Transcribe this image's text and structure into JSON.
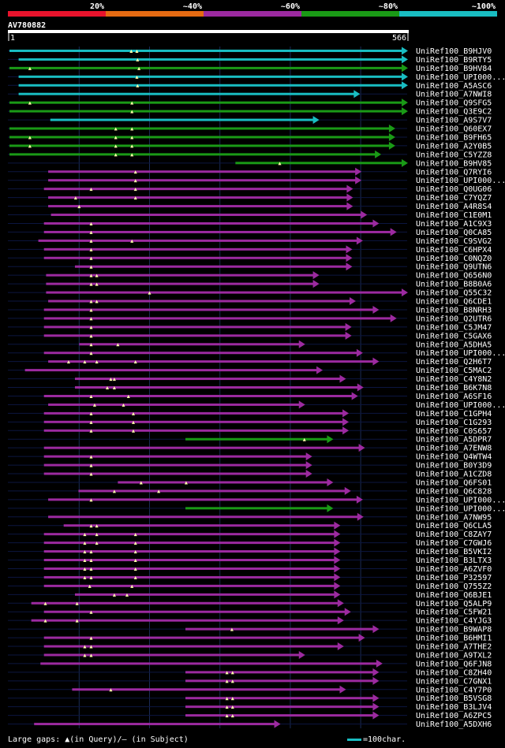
{
  "colors": {
    "c20": "#e8132c",
    "c40": "#e56a12",
    "c60": "#9c2aa0",
    "c80": "#1a9a16",
    "c100": "#19bdc2",
    "query": "#ffffff",
    "background": "#000000",
    "grid": "#1a2a55"
  },
  "legend": {
    "gaps_text": "Large gaps: ▲(in Query)/– (in Subject)",
    "scale_text": "=100char."
  },
  "chart_data": {
    "type": "alignment-overview",
    "title": "AV780882",
    "identity_bins": [
      {
        "label": "20%",
        "color": "c20"
      },
      {
        "label": "~40%",
        "color": "c40"
      },
      {
        "label": "~60%",
        "color": "c60"
      },
      {
        "label": "~80%",
        "color": "c80"
      },
      {
        "label": "~100%",
        "color": "c100"
      }
    ],
    "query": {
      "start": 1,
      "end": 566,
      "start_label": "1",
      "end_label": "566"
    },
    "gridlines": [
      100,
      200,
      300,
      400,
      500
    ],
    "hits": [
      {
        "id": "UniRef100_B9HJV0",
        "s": 1,
        "e": 566,
        "c": "c100",
        "g": [
          174,
          182
        ]
      },
      {
        "id": "UniRef100_B9RTY5",
        "s": 14,
        "e": 566,
        "c": "c100",
        "g": [
          183
        ]
      },
      {
        "id": "UniRef100_B9HV84",
        "s": 1,
        "e": 566,
        "c": "c80",
        "g": [
          30,
          185
        ]
      },
      {
        "id": "UniRef100_UPI000...",
        "s": 14,
        "e": 566,
        "c": "c100",
        "g": [
          182
        ]
      },
      {
        "id": "UniRef100_A5ASC6",
        "s": 14,
        "e": 566,
        "c": "c100",
        "g": [
          183
        ]
      },
      {
        "id": "UniRef100_A7NWI8",
        "s": 14,
        "e": 498,
        "c": "c100",
        "g": []
      },
      {
        "id": "UniRef100_Q9SFG5",
        "s": 1,
        "e": 566,
        "c": "c80",
        "g": [
          30,
          175
        ]
      },
      {
        "id": "UniRef100_Q3E9C2",
        "s": 1,
        "e": 566,
        "c": "c80",
        "g": [
          175
        ]
      },
      {
        "id": "UniRef100_A9S7V7",
        "s": 59,
        "e": 440,
        "c": "c100",
        "g": []
      },
      {
        "id": "UniRef100_Q60EX7",
        "s": 1,
        "e": 548,
        "c": "c80",
        "g": [
          152,
          175
        ]
      },
      {
        "id": "UniRef100_B9FH65",
        "s": 1,
        "e": 548,
        "c": "c80",
        "g": [
          30,
          152,
          175
        ]
      },
      {
        "id": "UniRef100_A2Y0B5",
        "s": 1,
        "e": 548,
        "c": "c80",
        "g": [
          30,
          152,
          175
        ]
      },
      {
        "id": "UniRef100_C5YZZ8",
        "s": 1,
        "e": 528,
        "c": "c80",
        "g": [
          152,
          175
        ]
      },
      {
        "id": "UniRef100_B9HV85",
        "s": 322,
        "e": 566,
        "c": "c80",
        "g": [
          385
        ]
      },
      {
        "id": "UniRef100_Q7RYI6",
        "s": 56,
        "e": 500,
        "c": "c60",
        "g": [
          180
        ]
      },
      {
        "id": "UniRef100_UPI000...",
        "s": 56,
        "e": 500,
        "c": "c60",
        "g": [
          180
        ]
      },
      {
        "id": "UniRef100_Q0UG06",
        "s": 50,
        "e": 488,
        "c": "c60",
        "g": [
          117,
          180
        ]
      },
      {
        "id": "UniRef100_C7YQZ7",
        "s": 56,
        "e": 488,
        "c": "c60",
        "g": [
          95,
          180
        ]
      },
      {
        "id": "UniRef100_A4R8S4",
        "s": 56,
        "e": 488,
        "c": "c60",
        "g": [
          100
        ]
      },
      {
        "id": "UniRef100_C1E0M1",
        "s": 60,
        "e": 508,
        "c": "c60",
        "g": []
      },
      {
        "id": "UniRef100_A1C9X3",
        "s": 50,
        "e": 525,
        "c": "c60",
        "g": [
          117
        ]
      },
      {
        "id": "UniRef100_Q0CA85",
        "s": 50,
        "e": 550,
        "c": "c60",
        "g": [
          117
        ]
      },
      {
        "id": "UniRef100_C9SVG2",
        "s": 42,
        "e": 502,
        "c": "c60",
        "g": [
          117,
          175
        ]
      },
      {
        "id": "UniRef100_C6HPX4",
        "s": 50,
        "e": 487,
        "c": "c60",
        "g": [
          117
        ]
      },
      {
        "id": "UniRef100_C0NQZ0",
        "s": 50,
        "e": 487,
        "c": "c60",
        "g": [
          117
        ]
      },
      {
        "id": "UniRef100_Q9UTN6",
        "s": 94,
        "e": 487,
        "c": "c60",
        "g": [
          117
        ]
      },
      {
        "id": "UniRef100_Q656N0",
        "s": 53,
        "e": 440,
        "c": "c60",
        "g": [
          117,
          125
        ]
      },
      {
        "id": "UniRef100_B8B0A6",
        "s": 53,
        "e": 440,
        "c": "c60",
        "g": [
          117,
          125
        ]
      },
      {
        "id": "UniRef100_Q55C32",
        "s": 53,
        "e": 566,
        "c": "c60",
        "g": [
          200
        ]
      },
      {
        "id": "UniRef100_Q6CDE1",
        "s": 56,
        "e": 492,
        "c": "c60",
        "g": [
          117,
          125
        ]
      },
      {
        "id": "UniRef100_B8NRH3",
        "s": 50,
        "e": 525,
        "c": "c60",
        "g": [
          117
        ]
      },
      {
        "id": "UniRef100_Q2UTR6",
        "s": 50,
        "e": 550,
        "c": "c60",
        "g": [
          117
        ]
      },
      {
        "id": "UniRef100_C5JM47",
        "s": 50,
        "e": 486,
        "c": "c60",
        "g": [
          117
        ]
      },
      {
        "id": "UniRef100_C5GAX6",
        "s": 50,
        "e": 486,
        "c": "c60",
        "g": [
          117
        ]
      },
      {
        "id": "UniRef100_A5DHA5",
        "s": 100,
        "e": 420,
        "c": "c60",
        "g": [
          117,
          155
        ]
      },
      {
        "id": "UniRef100_UPI000...",
        "s": 50,
        "e": 502,
        "c": "c60",
        "g": [
          117
        ]
      },
      {
        "id": "UniRef100_Q2H6T7",
        "s": 56,
        "e": 525,
        "c": "c60",
        "g": [
          85,
          108,
          125,
          180
        ]
      },
      {
        "id": "UniRef100_C5MAC2",
        "s": 23,
        "e": 445,
        "c": "c60",
        "g": []
      },
      {
        "id": "UniRef100_C4Y8N2",
        "s": 94,
        "e": 478,
        "c": "c60",
        "g": [
          145,
          150
        ]
      },
      {
        "id": "UniRef100_B6K7N8",
        "s": 94,
        "e": 503,
        "c": "c60",
        "g": [
          140,
          150
        ]
      },
      {
        "id": "UniRef100_A6SF16",
        "s": 50,
        "e": 495,
        "c": "c60",
        "g": [
          117,
          170
        ]
      },
      {
        "id": "UniRef100_UPI000...",
        "s": 56,
        "e": 420,
        "c": "c60",
        "g": [
          122,
          163
        ]
      },
      {
        "id": "UniRef100_C1GPH4",
        "s": 50,
        "e": 482,
        "c": "c60",
        "g": [
          117,
          177
        ]
      },
      {
        "id": "UniRef100_C1G293",
        "s": 50,
        "e": 482,
        "c": "c60",
        "g": [
          117,
          177
        ]
      },
      {
        "id": "UniRef100_C0S657",
        "s": 50,
        "e": 482,
        "c": "c60",
        "g": [
          117,
          177
        ]
      },
      {
        "id": "UniRef100_A5DPR7",
        "s": 251,
        "e": 460,
        "c": "c80",
        "g": [
          420
        ]
      },
      {
        "id": "UniRef100_A7ENW8",
        "s": 50,
        "e": 505,
        "c": "c60",
        "g": []
      },
      {
        "id": "UniRef100_Q4WTW4",
        "s": 50,
        "e": 430,
        "c": "c60",
        "g": [
          117
        ]
      },
      {
        "id": "UniRef100_B0Y3D9",
        "s": 50,
        "e": 430,
        "c": "c60",
        "g": [
          117
        ]
      },
      {
        "id": "UniRef100_A1CZD8",
        "s": 50,
        "e": 430,
        "c": "c60",
        "g": [
          117
        ]
      },
      {
        "id": "UniRef100_Q6FS01",
        "s": 155,
        "e": 460,
        "c": "c60",
        "g": [
          188,
          252
        ]
      },
      {
        "id": "UniRef100_Q6C828",
        "s": 99,
        "e": 485,
        "c": "c60",
        "g": [
          150,
          213
        ]
      },
      {
        "id": "UniRef100_UPI000...",
        "s": 56,
        "e": 502,
        "c": "c60",
        "g": [
          117
        ]
      },
      {
        "id": "UniRef100_UPI000...",
        "s": 251,
        "e": 460,
        "c": "c80",
        "g": []
      },
      {
        "id": "UniRef100_A7NW95",
        "s": 56,
        "e": 503,
        "c": "c60",
        "g": []
      },
      {
        "id": "UniRef100_Q6CLA5",
        "s": 78,
        "e": 470,
        "c": "c60",
        "g": [
          117,
          125
        ]
      },
      {
        "id": "UniRef100_C8ZAY7",
        "s": 50,
        "e": 470,
        "c": "c60",
        "g": [
          108,
          125,
          180
        ]
      },
      {
        "id": "UniRef100_C7GWJ6",
        "s": 50,
        "e": 470,
        "c": "c60",
        "g": [
          108,
          125,
          180
        ]
      },
      {
        "id": "UniRef100_B5VKI2",
        "s": 50,
        "e": 470,
        "c": "c60",
        "g": [
          108,
          117,
          180
        ]
      },
      {
        "id": "UniRef100_B3LTX3",
        "s": 50,
        "e": 470,
        "c": "c60",
        "g": [
          108,
          117,
          180
        ]
      },
      {
        "id": "UniRef100_A6ZVF0",
        "s": 50,
        "e": 470,
        "c": "c60",
        "g": [
          108,
          117,
          180
        ]
      },
      {
        "id": "UniRef100_P32597",
        "s": 50,
        "e": 470,
        "c": "c60",
        "g": [
          108,
          117,
          180
        ]
      },
      {
        "id": "UniRef100_Q755Z2",
        "s": 50,
        "e": 470,
        "c": "c60",
        "g": [
          115,
          175
        ]
      },
      {
        "id": "UniRef100_Q6BJE1",
        "s": 94,
        "e": 470,
        "c": "c60",
        "g": [
          150,
          168
        ]
      },
      {
        "id": "UniRef100_Q5ALP9",
        "s": 32,
        "e": 475,
        "c": "c60",
        "g": [
          52,
          97
        ]
      },
      {
        "id": "UniRef100_C5FW21",
        "s": 50,
        "e": 485,
        "c": "c60",
        "g": [
          117
        ]
      },
      {
        "id": "UniRef100_C4YJG3",
        "s": 32,
        "e": 475,
        "c": "c60",
        "g": [
          52,
          97
        ]
      },
      {
        "id": "UniRef100_B9WAP8",
        "s": 251,
        "e": 525,
        "c": "c60",
        "g": [
          317
        ]
      },
      {
        "id": "UniRef100_B6HMI1",
        "s": 50,
        "e": 505,
        "c": "c60",
        "g": [
          117
        ]
      },
      {
        "id": "UniRef100_A7THE2",
        "s": 50,
        "e": 475,
        "c": "c60",
        "g": [
          108,
          117
        ]
      },
      {
        "id": "UniRef100_A9TXL2",
        "s": 50,
        "e": 420,
        "c": "c60",
        "g": [
          108,
          117
        ]
      },
      {
        "id": "UniRef100_Q6FJN8",
        "s": 45,
        "e": 530,
        "c": "c60",
        "g": []
      },
      {
        "id": "UniRef100_C8ZH40",
        "s": 251,
        "e": 525,
        "c": "c60",
        "g": [
          310,
          318
        ]
      },
      {
        "id": "UniRef100_C7GNX1",
        "s": 251,
        "e": 525,
        "c": "c60",
        "g": [
          310,
          318
        ]
      },
      {
        "id": "UniRef100_C4Y7P0",
        "s": 90,
        "e": 478,
        "c": "c60",
        "g": [
          145
        ]
      },
      {
        "id": "UniRef100_B5VSG8",
        "s": 251,
        "e": 525,
        "c": "c60",
        "g": [
          310,
          318
        ]
      },
      {
        "id": "UniRef100_B3LJV4",
        "s": 251,
        "e": 525,
        "c": "c60",
        "g": [
          310,
          318
        ]
      },
      {
        "id": "UniRef100_A6ZPC5",
        "s": 251,
        "e": 525,
        "c": "c60",
        "g": [
          310,
          318
        ]
      },
      {
        "id": "UniRef100_A5DXH6",
        "s": 36,
        "e": 385,
        "c": "c60",
        "g": []
      }
    ]
  }
}
